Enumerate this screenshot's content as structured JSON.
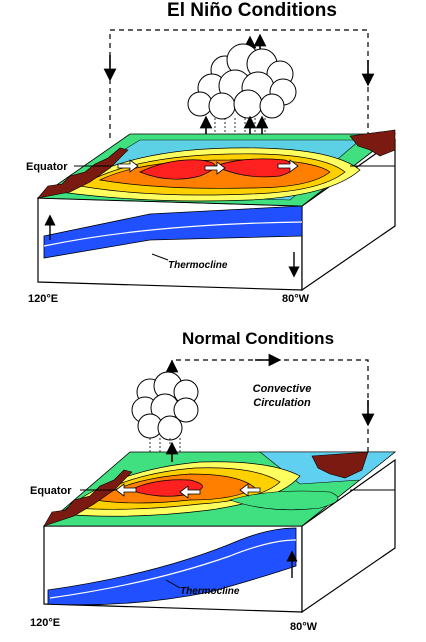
{
  "panels": [
    {
      "title": "El Niño Conditions",
      "equator_label": "Equator",
      "thermocline_label": "Thermocline",
      "lon_left": "120°E",
      "lon_right": "80°W"
    },
    {
      "title": "Normal Conditions",
      "equator_label": "Equator",
      "thermocline_label": "Thermocline",
      "lon_left": "120°E",
      "lon_right": "80°W",
      "circulation_label_line1": "Convective",
      "circulation_label_line2": "Circulation"
    }
  ],
  "colors": {
    "warm_core": "#ff2020",
    "warm": "#ff8000",
    "mid": "#ffd000",
    "cool": "#ffff60",
    "cooler": "#40e080",
    "cold": "#60d0f0",
    "water_body": "#2050ff",
    "land": "#7a1a10"
  }
}
